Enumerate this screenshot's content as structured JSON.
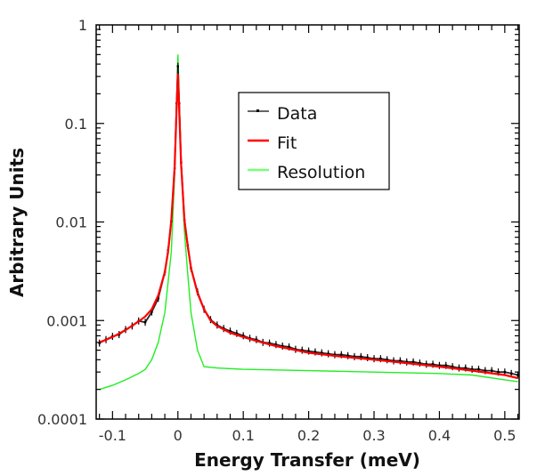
{
  "chart_data": {
    "type": "line",
    "xlabel": "Energy Transfer (meV)",
    "ylabel": "Arbitrary Units",
    "xlim": [
      -0.125,
      0.522
    ],
    "ylim": [
      0.0001,
      1
    ],
    "yscale": "log",
    "grid": false,
    "legend_position": "upper-center",
    "xticks": [
      -0.1,
      0,
      0.1,
      0.2,
      0.3,
      0.4,
      0.5
    ],
    "xtick_labels": [
      "-0.1",
      "0",
      "0.1",
      "0.2",
      "0.3",
      "0.4",
      "0.5"
    ],
    "yticks": [
      1,
      0.1,
      0.01,
      0.001,
      0.0001
    ],
    "ytick_labels": [
      "1",
      "0.1",
      "0.01",
      "0.001",
      "0.0001"
    ],
    "series": [
      {
        "name": "Data",
        "color": "#000000",
        "style": "points-with-errorbars",
        "x": [
          -0.12,
          -0.11,
          -0.1,
          -0.09,
          -0.08,
          -0.07,
          -0.06,
          -0.05,
          -0.04,
          -0.03,
          -0.02,
          -0.015,
          -0.01,
          -0.005,
          -0.002,
          0,
          0.002,
          0.005,
          0.01,
          0.015,
          0.02,
          0.03,
          0.04,
          0.05,
          0.06,
          0.07,
          0.08,
          0.09,
          0.1,
          0.11,
          0.12,
          0.13,
          0.14,
          0.15,
          0.16,
          0.17,
          0.18,
          0.19,
          0.2,
          0.21,
          0.22,
          0.23,
          0.24,
          0.25,
          0.26,
          0.27,
          0.28,
          0.29,
          0.3,
          0.31,
          0.32,
          0.33,
          0.34,
          0.35,
          0.36,
          0.37,
          0.38,
          0.39,
          0.4,
          0.41,
          0.42,
          0.43,
          0.44,
          0.45,
          0.46,
          0.47,
          0.48,
          0.49,
          0.5,
          0.51,
          0.52
        ],
        "y": [
          0.00059,
          0.00064,
          0.00069,
          0.00072,
          0.00081,
          0.00088,
          0.00099,
          0.00096,
          0.00122,
          0.00168,
          0.0031,
          0.0052,
          0.0102,
          0.035,
          0.16,
          0.38,
          0.16,
          0.04,
          0.0105,
          0.0058,
          0.0034,
          0.00195,
          0.0013,
          0.00102,
          0.0009,
          0.00083,
          0.00078,
          0.00074,
          0.0007,
          0.00066,
          0.00064,
          0.0006,
          0.00059,
          0.00057,
          0.00055,
          0.00054,
          0.00051,
          0.0005,
          0.00049,
          0.00048,
          0.00047,
          0.00046,
          0.00045,
          0.00045,
          0.00044,
          0.00043,
          0.00043,
          0.00042,
          0.00041,
          0.00041,
          0.0004,
          0.00039,
          0.00039,
          0.00038,
          0.00038,
          0.00037,
          0.00036,
          0.00036,
          0.00035,
          0.00035,
          0.00034,
          0.00033,
          0.00033,
          0.00032,
          0.00032,
          0.00031,
          0.00031,
          0.0003,
          0.0003,
          0.00029,
          0.00028
        ]
      },
      {
        "name": "Fit",
        "color": "#ff0000",
        "style": "line",
        "x": [
          -0.12,
          -0.1,
          -0.08,
          -0.06,
          -0.05,
          -0.04,
          -0.03,
          -0.02,
          -0.015,
          -0.01,
          -0.005,
          -0.002,
          0,
          0.002,
          0.005,
          0.01,
          0.015,
          0.02,
          0.03,
          0.04,
          0.05,
          0.06,
          0.08,
          0.1,
          0.12,
          0.15,
          0.2,
          0.25,
          0.3,
          0.35,
          0.4,
          0.45,
          0.5,
          0.52
        ],
        "y": [
          0.0006,
          0.00068,
          0.0008,
          0.00098,
          0.0011,
          0.0013,
          0.0018,
          0.0031,
          0.005,
          0.0105,
          0.036,
          0.14,
          0.32,
          0.14,
          0.038,
          0.0105,
          0.0057,
          0.0034,
          0.0019,
          0.0013,
          0.001,
          0.00088,
          0.00075,
          0.00068,
          0.00062,
          0.00055,
          0.00047,
          0.00043,
          0.0004,
          0.00037,
          0.00034,
          0.00031,
          0.00028,
          0.00026
        ]
      },
      {
        "name": "Resolution",
        "color": "#22ee22",
        "style": "line",
        "x": [
          -0.12,
          -0.1,
          -0.08,
          -0.06,
          -0.05,
          -0.04,
          -0.03,
          -0.02,
          -0.01,
          -0.005,
          0,
          0.005,
          0.01,
          0.015,
          0.02,
          0.03,
          0.04,
          0.06,
          0.1,
          0.2,
          0.3,
          0.4,
          0.45,
          0.5,
          0.52
        ],
        "y": [
          0.0002,
          0.00022,
          0.00025,
          0.00029,
          0.00032,
          0.0004,
          0.0006,
          0.0012,
          0.005,
          0.03,
          0.5,
          0.04,
          0.008,
          0.003,
          0.0012,
          0.0005,
          0.00034,
          0.00033,
          0.00032,
          0.00031,
          0.0003,
          0.00029,
          0.00028,
          0.00025,
          0.00024
        ]
      }
    ]
  }
}
